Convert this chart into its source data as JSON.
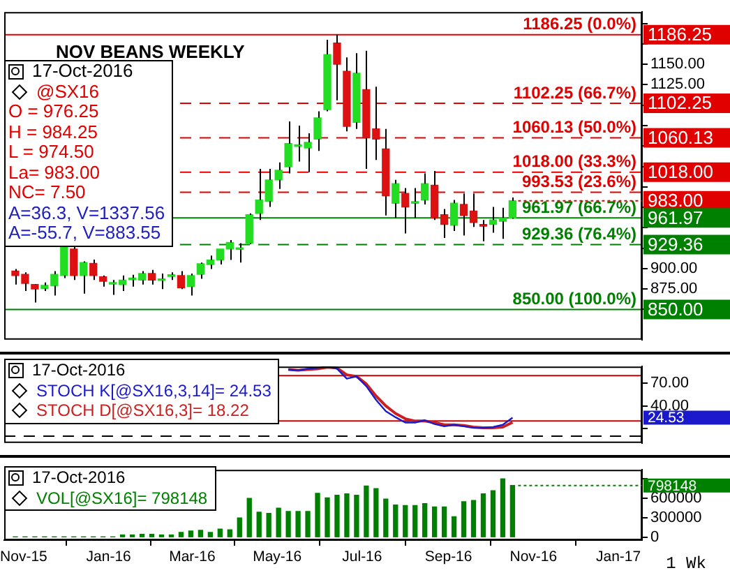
{
  "chart_data": [
    {
      "type": "candlestick",
      "title": "NOV BEANS WEEKLY",
      "legend_title": "17-Oct-2016",
      "tick_labels": "y",
      "x": [
        "2015-10-26",
        "2015-11-02",
        "2015-11-09",
        "2015-11-16",
        "2015-11-23",
        "2015-11-30",
        "2015-12-07",
        "2015-12-14",
        "2015-12-21",
        "2015-12-28",
        "2016-01-04",
        "2016-01-11",
        "2016-01-18",
        "2016-01-25",
        "2016-02-01",
        "2016-02-08",
        "2016-02-15",
        "2016-02-22",
        "2016-02-29",
        "2016-03-07",
        "2016-03-14",
        "2016-03-21",
        "2016-03-28",
        "2016-04-04",
        "2016-04-11",
        "2016-04-18",
        "2016-04-25",
        "2016-05-02",
        "2016-05-09",
        "2016-05-16",
        "2016-05-23",
        "2016-05-30",
        "2016-06-06",
        "2016-06-13",
        "2016-06-20",
        "2016-06-27",
        "2016-07-04",
        "2016-07-11",
        "2016-07-18",
        "2016-07-25",
        "2016-08-01",
        "2016-08-08",
        "2016-08-15",
        "2016-08-22",
        "2016-08-29",
        "2016-09-05",
        "2016-09-12",
        "2016-09-19",
        "2016-09-26",
        "2016-10-03",
        "2016-10-10",
        "2016-10-17"
      ],
      "ohlc": [
        [
          897,
          899.5,
          880.5,
          891.5
        ],
        [
          893,
          895.5,
          872.5,
          882
        ],
        [
          880.5,
          881,
          858.5,
          875
        ],
        [
          875.5,
          883,
          872.5,
          879.5
        ],
        [
          879,
          897,
          867,
          893
        ],
        [
          891.5,
          928,
          888.5,
          927
        ],
        [
          924,
          927,
          886,
          891.5
        ],
        [
          891.5,
          909,
          869.5,
          907.5
        ],
        [
          906.5,
          911,
          886,
          891.5
        ],
        [
          890,
          891.5,
          878,
          884.5
        ],
        [
          881,
          886,
          868,
          883
        ],
        [
          880.5,
          891.5,
          872.5,
          886
        ],
        [
          886.5,
          892.5,
          878,
          888.5
        ],
        [
          886,
          897,
          880.5,
          894
        ],
        [
          894,
          898.5,
          880.5,
          886
        ],
        [
          885.5,
          894,
          875,
          887.5
        ],
        [
          890.5,
          895.5,
          886,
          892.5
        ],
        [
          891.5,
          897,
          875,
          876.5
        ],
        [
          878,
          894,
          867,
          891.5
        ],
        [
          893,
          907.5,
          887.5,
          906
        ],
        [
          905,
          916,
          899.5,
          910.5
        ],
        [
          910.5,
          924,
          905,
          924
        ],
        [
          924,
          935,
          910.5,
          932
        ],
        [
          923.5,
          931,
          907.5,
          925.5
        ],
        [
          931,
          967.5,
          930,
          966
        ],
        [
          967.5,
          1022,
          959.5,
          984
        ],
        [
          982.5,
          1022,
          975.5,
          1008.5
        ],
        [
          1008.5,
          1030,
          997.5,
          1020.5
        ],
        [
          1024.5,
          1080,
          1016.5,
          1053
        ],
        [
          1049.5,
          1075,
          1031,
          1051.5
        ],
        [
          1047.5,
          1065.5,
          1018,
          1054.5
        ],
        [
          1058.5,
          1092.5,
          1044,
          1084.5
        ],
        [
          1094.5,
          1180,
          1092.5,
          1162
        ],
        [
          1176,
          1186.25,
          1106,
          1150
        ],
        [
          1141.5,
          1158.5,
          1068,
          1074
        ],
        [
          1079,
          1163.5,
          1071,
          1139
        ],
        [
          1119,
          1166.5,
          1022,
          1060
        ],
        [
          1071,
          1122.5,
          1033,
          1058.5
        ],
        [
          1046.5,
          1071,
          965,
          989
        ],
        [
          980,
          1008.5,
          962,
          1004
        ],
        [
          992,
          998.5,
          943,
          975.5
        ],
        [
          980,
          998.5,
          962,
          982
        ],
        [
          984,
          1016.5,
          978.5,
          1004
        ],
        [
          1002,
          1019.5,
          959.5,
          962
        ],
        [
          966,
          973,
          937.5,
          954
        ],
        [
          953,
          984,
          946,
          980
        ],
        [
          978.5,
          992,
          940.5,
          965
        ],
        [
          970.5,
          992,
          951,
          956.5
        ],
        [
          954,
          959.5,
          933.5,
          952
        ],
        [
          954,
          975.5,
          944,
          959.5
        ],
        [
          958,
          974.5,
          936.5,
          962
        ],
        [
          962,
          987,
          961,
          983
        ]
      ],
      "colors": [
        "#dd1111",
        "#dd1111",
        "#dd1111",
        "#22dd22",
        "#22dd22",
        "#22dd22",
        "#dd1111",
        "#22dd22",
        "#dd1111",
        "#dd1111",
        "#22dd22",
        "#22dd22",
        "#22dd22",
        "#22dd22",
        "#dd1111",
        "#22dd22",
        "#22dd22",
        "#dd1111",
        "#22dd22",
        "#22dd22",
        "#22dd22",
        "#22dd22",
        "#22dd22",
        "#22dd22",
        "#22dd22",
        "#22dd22",
        "#22dd22",
        "#22dd22",
        "#22dd22",
        "#22dd22",
        "#22dd22",
        "#22dd22",
        "#22dd22",
        "#dd1111",
        "#dd1111",
        "#22dd22",
        "#dd1111",
        "#dd1111",
        "#dd1111",
        "#22dd22",
        "#dd1111",
        "#22dd22",
        "#22dd22",
        "#dd1111",
        "#dd1111",
        "#22dd22",
        "#dd1111",
        "#dd1111",
        "#dd1111",
        "#22dd22",
        "#22dd22",
        "#22dd22"
      ],
      "xlim": [
        "2015-10-18",
        "2017-01-18"
      ],
      "ylim": [
        813,
        1214
      ],
      "yticks": [
        {
          "value": 850,
          "label": null
        },
        {
          "value": 875,
          "label": "875.00"
        },
        {
          "value": 900,
          "label": "900.00"
        },
        {
          "value": 925,
          "label": null
        },
        {
          "value": 950,
          "label": null
        },
        {
          "value": 975,
          "label": null
        },
        {
          "value": 1000,
          "label": null
        },
        {
          "value": 1025,
          "label": null
        },
        {
          "value": 1050,
          "label": null
        },
        {
          "value": 1075,
          "label": null
        },
        {
          "value": 1100,
          "label": null
        },
        {
          "value": 1125,
          "label": "1125.00"
        },
        {
          "value": 1150,
          "label": "1150.00"
        },
        {
          "value": 1175,
          "label": null
        },
        {
          "value": 1200,
          "label": null
        }
      ],
      "ref_lines": [
        {
          "axis": "y",
          "value": 1186.25,
          "label": "1186.25 (0.0%)",
          "color": "#e00000",
          "line_style": "solid"
        },
        {
          "axis": "y",
          "value": 1102.25,
          "label": "1102.25 (66.7%)",
          "color": "#e00000",
          "line_style": "dashed"
        },
        {
          "axis": "y",
          "value": 1060.13,
          "label": "1060.13 (50.0%)",
          "color": "#e00000",
          "line_style": "dashed"
        },
        {
          "axis": "y",
          "value": 1018,
          "label": "1018.00 (33.3%)",
          "color": "#e00000",
          "line_style": "dashed"
        },
        {
          "axis": "y",
          "value": 993.53,
          "label": "993.53 (23.6%)",
          "color": "#e00000",
          "line_style": "dashed"
        },
        {
          "axis": "y",
          "value": 961.97,
          "label": "961.97 (66.7%)",
          "color": "#008000",
          "line_style": "solid"
        },
        {
          "axis": "y",
          "value": 929.36,
          "label": "929.36 (76.4%)",
          "color": "#008000",
          "line_style": "dashed"
        },
        {
          "axis": "y",
          "value": 850,
          "label": "850.00 (100.0%)",
          "color": "#008000",
          "line_style": "solid"
        }
      ],
      "annotations": [
        "@SX16",
        "O = 976.25",
        "H = 984.25",
        "L = 974.50",
        "La= 983.00",
        "NC= 7.50",
        "A=36.3, V=1337.56",
        "A=-55.7, V=883.55",
        {
          "text": "1186.25",
          "x": "2017-01-18",
          "y": 1186.25
        },
        {
          "text": "1102.25",
          "x": "2017-01-18",
          "y": 1102.25
        },
        {
          "text": "1060.13",
          "x": "2017-01-18",
          "y": 1060.13
        },
        {
          "text": "1018.00",
          "x": "2017-01-18",
          "y": 1018
        },
        {
          "text": "983.00",
          "x": "2016-10-17",
          "y": 983
        },
        {
          "text": "961.97",
          "x": "2017-01-18",
          "y": 961.97
        },
        {
          "text": "929.36",
          "x": "2017-01-18",
          "y": 929.36
        },
        {
          "text": "850.00",
          "x": "2017-01-18",
          "y": 850
        }
      ]
    },
    {
      "type": "line",
      "legend_title": "17-Oct-2016",
      "legend": "left",
      "tick_labels": "y",
      "marker": "none",
      "x": [
        "2016-05-09",
        "2016-05-16",
        "2016-05-23",
        "2016-05-30",
        "2016-06-06",
        "2016-06-13",
        "2016-06-20",
        "2016-06-27",
        "2016-07-04",
        "2016-07-11",
        "2016-07-18",
        "2016-07-25",
        "2016-08-01",
        "2016-08-08",
        "2016-08-15",
        "2016-08-22",
        "2016-08-29",
        "2016-09-05",
        "2016-09-12",
        "2016-09-19",
        "2016-09-26",
        "2016-10-03",
        "2016-10-10",
        "2016-10-17"
      ],
      "series": [
        {
          "name": "STOCH K[@SX16,3,14]= 24.53",
          "color": "#1a1acc",
          "values": [
            88,
            87,
            89,
            90,
            92,
            89,
            76,
            79,
            66,
            48,
            33,
            25,
            18,
            18,
            21,
            16,
            13,
            15,
            13,
            11,
            11,
            12,
            15,
            24.53
          ]
        },
        {
          "name": "STOCH D[@SX16,3]= 18.22",
          "color": "#cc2020",
          "values": [
            88,
            87,
            88,
            89,
            91,
            90,
            81,
            79,
            69,
            53,
            40,
            30,
            23,
            20,
            20,
            18,
            15,
            15,
            14,
            12,
            11,
            11,
            12,
            18.22
          ]
        }
      ],
      "xlim": [
        "2015-10-18",
        "2017-01-18"
      ],
      "ylim": [
        -9,
        92
      ],
      "yticks": [
        {
          "value": 10,
          "label": null
        },
        {
          "value": 40,
          "label": "40.00"
        },
        {
          "value": 70,
          "label": "70.00"
        }
      ],
      "ref_lines": [
        {
          "axis": "y",
          "value": 80,
          "color": "#cc0000",
          "line_style": "solid"
        },
        {
          "axis": "y",
          "value": 20,
          "color": "#cc0000",
          "line_style": "solid"
        },
        {
          "axis": "y",
          "value": 0,
          "color": "#000000",
          "line_style": "dashed"
        }
      ],
      "annotations": [
        {
          "text": "24.53",
          "x": "2017-01-18",
          "y": 24.53
        }
      ]
    },
    {
      "type": "bar",
      "legend_title": "17-Oct-2016",
      "legend": "top left",
      "x": [
        "2015-10-26",
        "2015-11-02",
        "2015-11-09",
        "2015-11-16",
        "2015-11-23",
        "2015-11-30",
        "2015-12-07",
        "2015-12-14",
        "2015-12-21",
        "2015-12-28",
        "2016-01-04",
        "2016-01-11",
        "2016-01-18",
        "2016-01-25",
        "2016-02-01",
        "2016-02-08",
        "2016-02-15",
        "2016-02-22",
        "2016-02-29",
        "2016-03-07",
        "2016-03-14",
        "2016-03-21",
        "2016-03-28",
        "2016-04-04",
        "2016-04-11",
        "2016-04-18",
        "2016-04-25",
        "2016-05-02",
        "2016-05-09",
        "2016-05-16",
        "2016-05-23",
        "2016-05-30",
        "2016-06-06",
        "2016-06-13",
        "2016-06-20",
        "2016-06-27",
        "2016-07-04",
        "2016-07-11",
        "2016-07-18",
        "2016-07-25",
        "2016-08-01",
        "2016-08-08",
        "2016-08-15",
        "2016-08-22",
        "2016-08-29",
        "2016-09-05",
        "2016-09-12",
        "2016-09-19",
        "2016-09-26",
        "2016-10-03",
        "2016-10-10",
        "2016-10-17"
      ],
      "series": [
        {
          "name": "VOL[@SX16]= 798148",
          "color": "#008000",
          "values": [
            10000,
            10000,
            10000,
            10000,
            10000,
            10000,
            10000,
            10000,
            10000,
            10000,
            10000,
            40000,
            40000,
            50000,
            50000,
            40000,
            40000,
            80000,
            100000,
            110000,
            80000,
            130000,
            120000,
            300000,
            600000,
            390000,
            370000,
            450000,
            400000,
            400000,
            400000,
            680000,
            610000,
            650000,
            670000,
            650000,
            790000,
            750000,
            590000,
            500000,
            490000,
            490000,
            520000,
            470000,
            470000,
            320000,
            550000,
            570000,
            670000,
            720000,
            900000,
            798148
          ]
        }
      ],
      "xlim": [
        "2015-10-18",
        "2017-01-18"
      ],
      "ylim": [
        -40000,
        1040000
      ],
      "xticks": [
        {
          "value": "2015-11-01",
          "label": "Nov-15"
        },
        {
          "value": "2016-01-01",
          "label": "Jan-16"
        },
        {
          "value": "2016-03-01",
          "label": "Mar-16"
        },
        {
          "value": "2016-05-01",
          "label": "May-16"
        },
        {
          "value": "2016-07-01",
          "label": "Jul-16"
        },
        {
          "value": "2016-09-01",
          "label": "Sep-16"
        },
        {
          "value": "2016-11-01",
          "label": "Nov-16"
        },
        {
          "value": "2017-01-01",
          "label": "Jan-17"
        }
      ],
      "yticks": [
        0,
        300000,
        600000,
        {
          "value": 900000,
          "label": null
        }
      ],
      "annotations": [
        "1 Wk",
        {
          "text": "798148",
          "x": "2016-10-17",
          "y": 798148
        }
      ]
    }
  ]
}
